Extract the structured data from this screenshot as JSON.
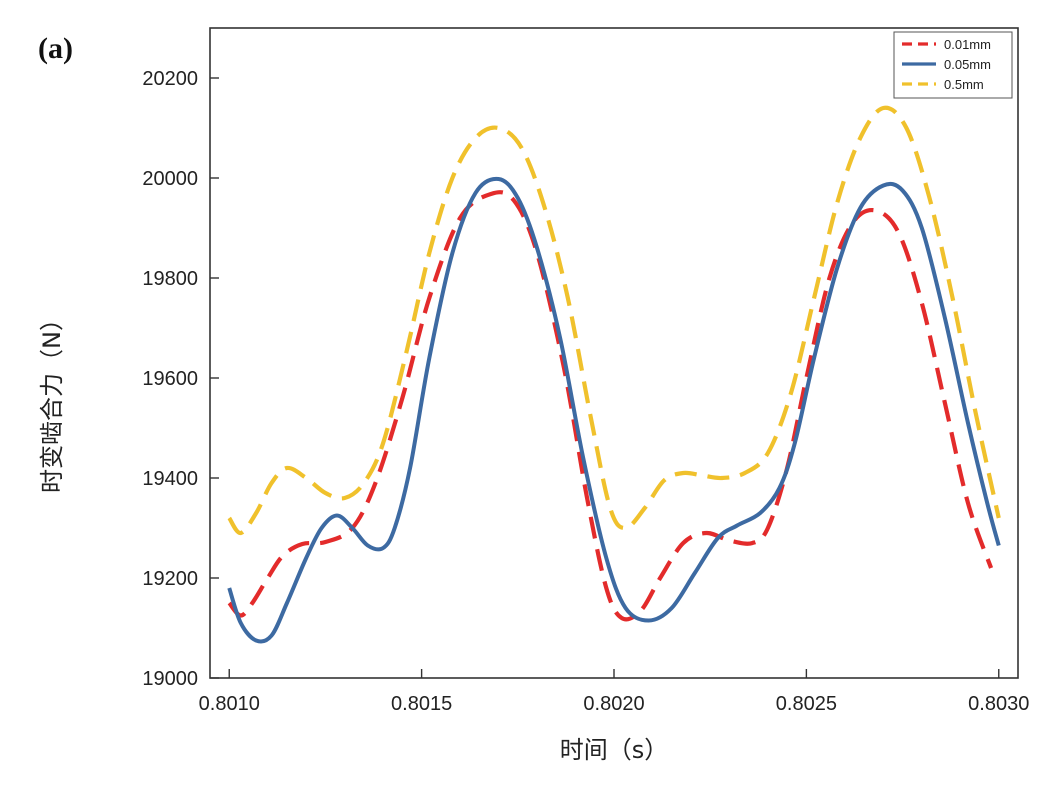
{
  "panel_label": "(a)",
  "chart_data": {
    "type": "line",
    "title": "",
    "xlabel": "时间（s）",
    "ylabel": "时变啮合力（N）",
    "xlim": [
      0.80095,
      0.80305
    ],
    "ylim": [
      19000,
      20300
    ],
    "xticks": [
      0.801,
      0.8015,
      0.802,
      0.8025,
      0.803
    ],
    "xtick_labels": [
      "0.8010",
      "0.8015",
      "0.8020",
      "0.8025",
      "0.8030"
    ],
    "yticks": [
      19000,
      19200,
      19400,
      19600,
      19800,
      20000,
      20200
    ],
    "ytick_labels": [
      "19000",
      "19200",
      "19400",
      "19600",
      "19800",
      "20000",
      "20200"
    ],
    "grid": false,
    "legend_position": "top-right",
    "series": [
      {
        "name": "0.01mm",
        "color": "#e32b2b",
        "dash": "dashed",
        "points": [
          [
            0.801,
            19150
          ],
          [
            0.80103,
            19125
          ],
          [
            0.80106,
            19150
          ],
          [
            0.8011,
            19200
          ],
          [
            0.80114,
            19245
          ],
          [
            0.80119,
            19268
          ],
          [
            0.80125,
            19272
          ],
          [
            0.80132,
            19300
          ],
          [
            0.80138,
            19390
          ],
          [
            0.80145,
            19560
          ],
          [
            0.80152,
            19760
          ],
          [
            0.8016,
            19920
          ],
          [
            0.80168,
            19968
          ],
          [
            0.80174,
            19955
          ],
          [
            0.8018,
            19850
          ],
          [
            0.80187,
            19620
          ],
          [
            0.80193,
            19360
          ],
          [
            0.80198,
            19180
          ],
          [
            0.80202,
            19120
          ],
          [
            0.80207,
            19135
          ],
          [
            0.80212,
            19200
          ],
          [
            0.80218,
            19270
          ],
          [
            0.80224,
            19290
          ],
          [
            0.8023,
            19275
          ],
          [
            0.80236,
            19270
          ],
          [
            0.8024,
            19300
          ],
          [
            0.80245,
            19420
          ],
          [
            0.8025,
            19600
          ],
          [
            0.80256,
            19800
          ],
          [
            0.80262,
            19910
          ],
          [
            0.80268,
            19935
          ],
          [
            0.80274,
            19890
          ],
          [
            0.8028,
            19750
          ],
          [
            0.80286,
            19550
          ],
          [
            0.80292,
            19350
          ],
          [
            0.80298,
            19220
          ]
        ]
      },
      {
        "name": "0.05mm",
        "color": "#3d6aa2",
        "dash": "solid",
        "points": [
          [
            0.801,
            19180
          ],
          [
            0.80103,
            19110
          ],
          [
            0.80107,
            19075
          ],
          [
            0.80111,
            19085
          ],
          [
            0.80115,
            19150
          ],
          [
            0.8012,
            19240
          ],
          [
            0.80124,
            19300
          ],
          [
            0.80128,
            19325
          ],
          [
            0.80132,
            19300
          ],
          [
            0.80136,
            19265
          ],
          [
            0.8014,
            19260
          ],
          [
            0.80143,
            19300
          ],
          [
            0.80147,
            19420
          ],
          [
            0.80152,
            19640
          ],
          [
            0.80158,
            19850
          ],
          [
            0.80164,
            19970
          ],
          [
            0.8017,
            19998
          ],
          [
            0.80175,
            19960
          ],
          [
            0.8018,
            19860
          ],
          [
            0.80186,
            19680
          ],
          [
            0.80192,
            19440
          ],
          [
            0.80198,
            19240
          ],
          [
            0.80203,
            19140
          ],
          [
            0.80209,
            19115
          ],
          [
            0.80215,
            19140
          ],
          [
            0.80221,
            19210
          ],
          [
            0.80227,
            19280
          ],
          [
            0.80232,
            19305
          ],
          [
            0.80238,
            19330
          ],
          [
            0.80243,
            19380
          ],
          [
            0.80247,
            19470
          ],
          [
            0.80252,
            19640
          ],
          [
            0.80258,
            19820
          ],
          [
            0.80264,
            19940
          ],
          [
            0.8027,
            19985
          ],
          [
            0.80275,
            19975
          ],
          [
            0.8028,
            19900
          ],
          [
            0.80286,
            19720
          ],
          [
            0.80292,
            19510
          ],
          [
            0.80297,
            19350
          ],
          [
            0.803,
            19265
          ]
        ]
      },
      {
        "name": "0.5mm",
        "color": "#f0c12c",
        "dash": "dashed",
        "points": [
          [
            0.801,
            19320
          ],
          [
            0.80103,
            19290
          ],
          [
            0.80107,
            19330
          ],
          [
            0.80111,
            19390
          ],
          [
            0.80115,
            19420
          ],
          [
            0.8012,
            19400
          ],
          [
            0.80125,
            19370
          ],
          [
            0.8013,
            19360
          ],
          [
            0.80135,
            19390
          ],
          [
            0.8014,
            19470
          ],
          [
            0.80146,
            19650
          ],
          [
            0.80152,
            19850
          ],
          [
            0.80158,
            20000
          ],
          [
            0.80164,
            20080
          ],
          [
            0.8017,
            20100
          ],
          [
            0.80176,
            20060
          ],
          [
            0.80182,
            19940
          ],
          [
            0.80188,
            19760
          ],
          [
            0.80194,
            19520
          ],
          [
            0.80199,
            19340
          ],
          [
            0.80203,
            19300
          ],
          [
            0.80208,
            19340
          ],
          [
            0.80213,
            19395
          ],
          [
            0.80218,
            19410
          ],
          [
            0.80223,
            19405
          ],
          [
            0.80228,
            19400
          ],
          [
            0.80234,
            19410
          ],
          [
            0.8024,
            19450
          ],
          [
            0.80246,
            19570
          ],
          [
            0.80252,
            19760
          ],
          [
            0.80258,
            19950
          ],
          [
            0.80264,
            20080
          ],
          [
            0.8027,
            20140
          ],
          [
            0.80276,
            20100
          ],
          [
            0.80282,
            19960
          ],
          [
            0.80288,
            19760
          ],
          [
            0.80294,
            19530
          ],
          [
            0.803,
            19320
          ]
        ]
      }
    ]
  }
}
